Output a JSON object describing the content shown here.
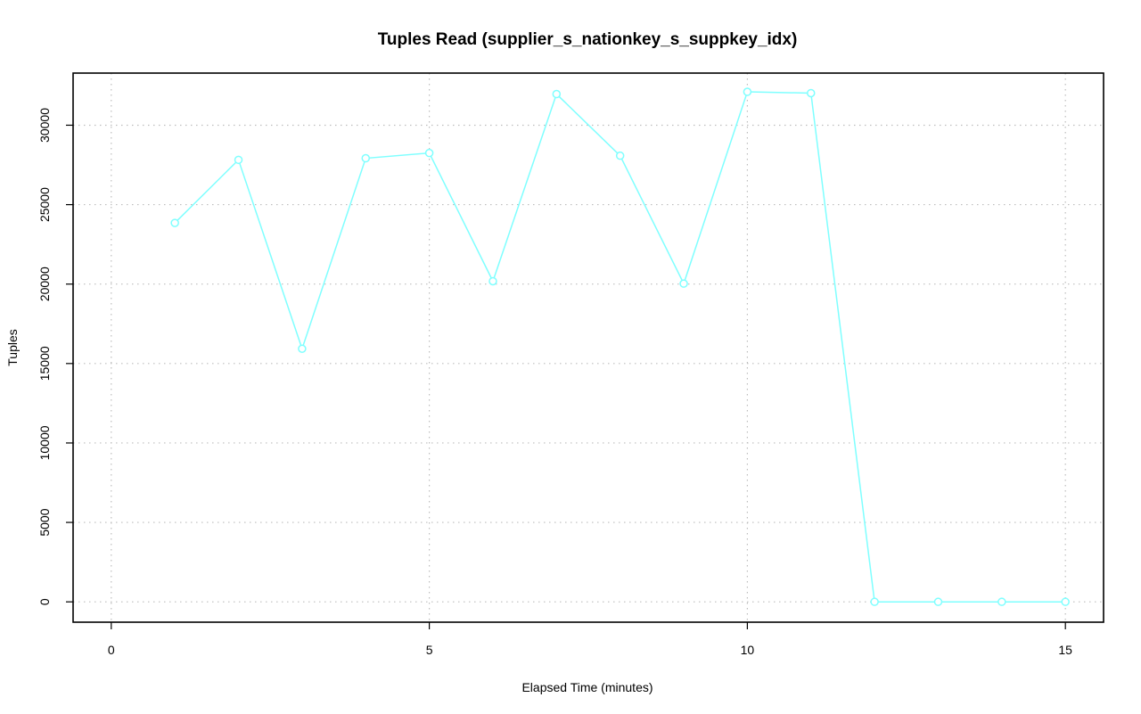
{
  "chart_data": {
    "type": "line",
    "title": "Tuples Read (supplier_s_nationkey_s_suppkey_idx)",
    "xlabel": "Elapsed Time (minutes)",
    "ylabel": "Tuples",
    "xlim": [
      -0.6,
      15.6
    ],
    "ylim": [
      -1280,
      33280
    ],
    "x_ticks": [
      0,
      5,
      10,
      15
    ],
    "y_ticks": [
      0,
      5000,
      10000,
      15000,
      20000,
      25000,
      30000
    ],
    "grid": true,
    "series": [
      {
        "color": "#7fffff",
        "marker": "open-circle",
        "x": [
          1,
          2,
          3,
          4,
          5,
          6,
          7,
          8,
          9,
          10,
          11,
          12,
          13,
          14,
          15
        ],
        "values": [
          23850,
          27820,
          15930,
          27920,
          28250,
          20180,
          31960,
          28080,
          20030,
          32100,
          32020,
          0,
          0,
          0,
          0
        ]
      }
    ]
  }
}
